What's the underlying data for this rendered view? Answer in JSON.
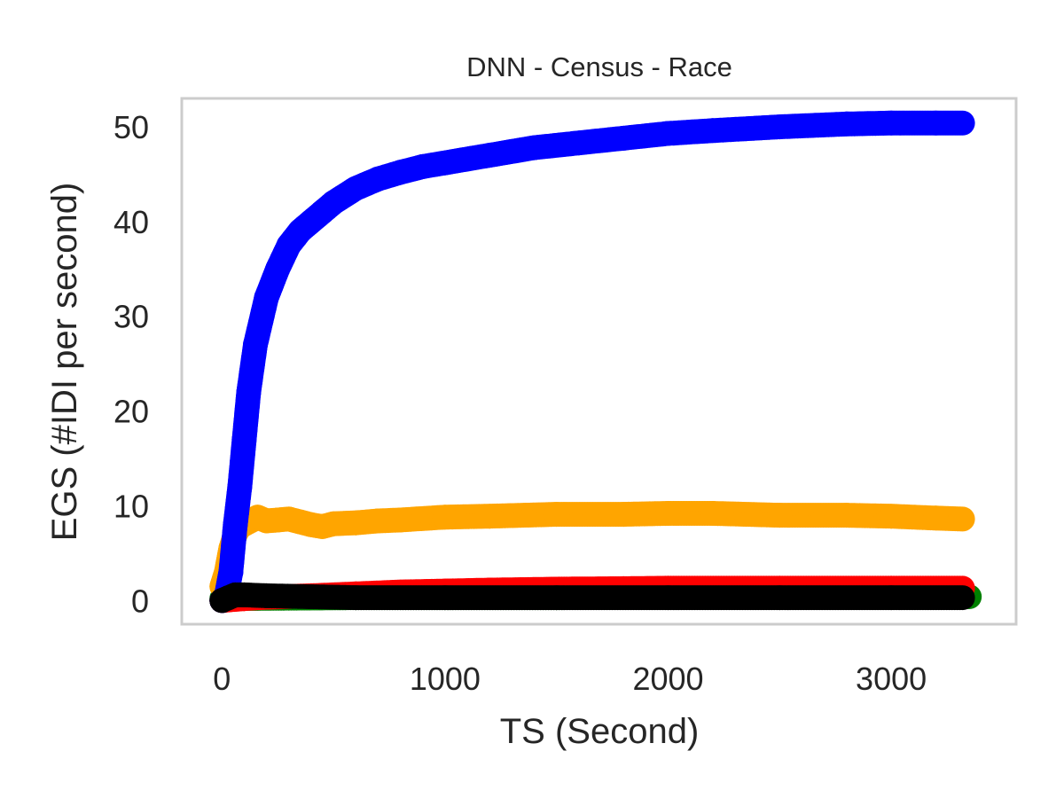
{
  "chart_data": {
    "type": "scatter",
    "title": "DNN - Census - Race",
    "xlabel": "TS (Second)",
    "ylabel": "EGS (#IDI  per second)",
    "xlim": [
      -180,
      3560
    ],
    "ylim": [
      -2.5,
      53
    ],
    "xticks": [
      0,
      1000,
      2000,
      3000
    ],
    "yticks": [
      0,
      10,
      20,
      30,
      40,
      50
    ],
    "grid": false,
    "legend": "none",
    "colors": {
      "frame": "#cccccc",
      "text": "#262626"
    },
    "series": [
      {
        "color": "#008000",
        "x": [
          0,
          300,
          600,
          1000,
          1500,
          2000,
          2500,
          3000,
          3350
        ],
        "y": [
          0.2,
          0.25,
          0.3,
          0.3,
          0.3,
          0.35,
          0.35,
          0.4,
          0.4
        ]
      },
      {
        "color": "#ff0000",
        "x": [
          0,
          100,
          200,
          400,
          600,
          800,
          1000,
          1200,
          1500,
          1800,
          2000,
          2500,
          3000,
          3320
        ],
        "y": [
          0.0,
          0.2,
          0.35,
          0.5,
          0.7,
          0.9,
          1.0,
          1.1,
          1.2,
          1.25,
          1.3,
          1.3,
          1.3,
          1.3
        ]
      },
      {
        "color": "#ffa500",
        "x": [
          0,
          20,
          40,
          60,
          80,
          120,
          160,
          200,
          250,
          300,
          350,
          400,
          450,
          500,
          600,
          700,
          800,
          1000,
          1200,
          1500,
          1800,
          2000,
          2200,
          2500,
          2800,
          3000,
          3200,
          3320
        ],
        "y": [
          1.5,
          3.0,
          5.5,
          7.0,
          7.8,
          8.3,
          8.8,
          8.4,
          8.5,
          8.6,
          8.3,
          8.0,
          7.8,
          8.1,
          8.2,
          8.4,
          8.5,
          8.8,
          8.9,
          9.1,
          9.1,
          9.2,
          9.2,
          9.0,
          9.0,
          8.9,
          8.7,
          8.6
        ]
      },
      {
        "color": "#0000ff",
        "x": [
          0,
          20,
          40,
          60,
          80,
          100,
          120,
          150,
          200,
          250,
          300,
          350,
          400,
          450,
          500,
          600,
          700,
          800,
          900,
          1000,
          1200,
          1400,
          1600,
          1800,
          2000,
          2200,
          2500,
          2800,
          3000,
          3200,
          3320
        ],
        "y": [
          0.0,
          0.5,
          3.0,
          8.0,
          12.0,
          17.0,
          22.0,
          27.0,
          32.0,
          35.0,
          37.5,
          39.0,
          40.0,
          41.0,
          42.0,
          43.5,
          44.5,
          45.2,
          45.8,
          46.2,
          47.0,
          47.8,
          48.3,
          48.8,
          49.3,
          49.6,
          50.0,
          50.3,
          50.4,
          50.4,
          50.4
        ]
      },
      {
        "color": "#000000",
        "x": [
          0,
          30,
          60,
          100,
          200,
          400,
          600,
          1000,
          1500,
          2000,
          2500,
          3000,
          3320
        ],
        "y": [
          0.0,
          0.3,
          0.6,
          0.6,
          0.5,
          0.4,
          0.3,
          0.3,
          0.3,
          0.3,
          0.3,
          0.3,
          0.3
        ]
      }
    ]
  }
}
